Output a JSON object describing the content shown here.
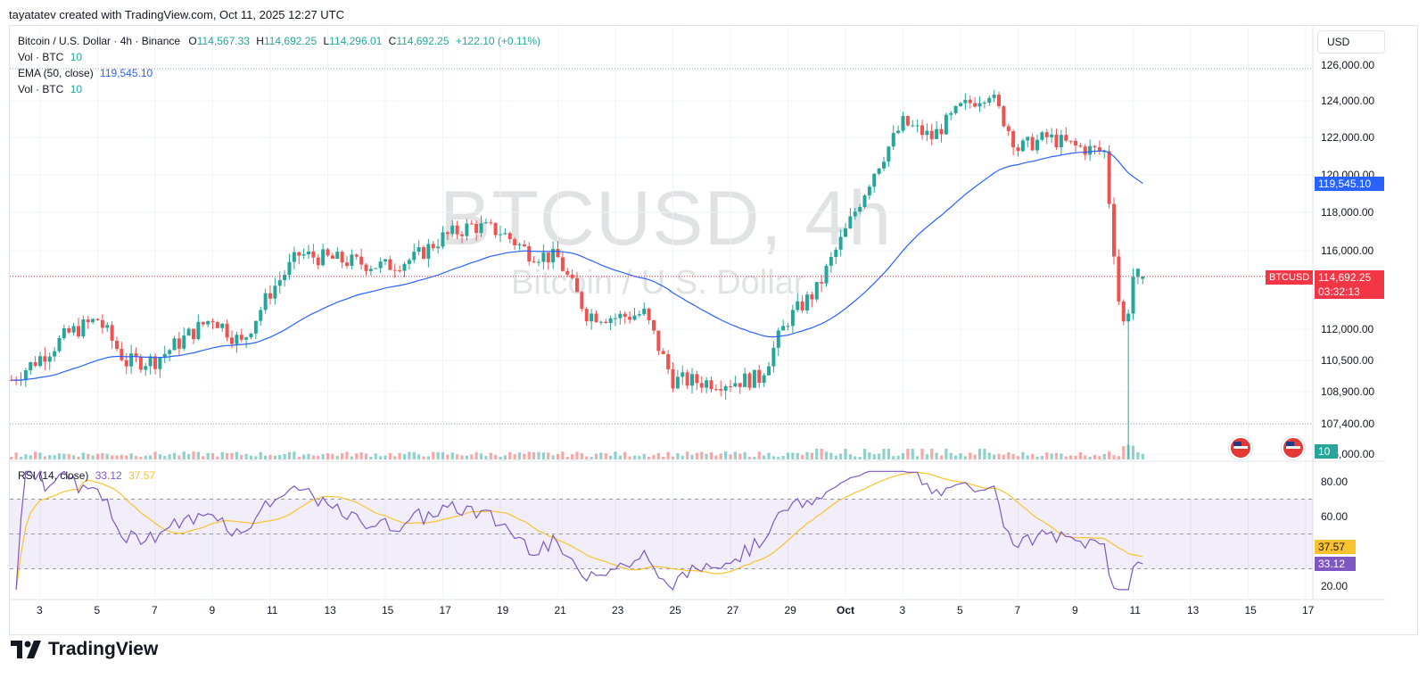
{
  "header": {
    "text": "tayatatev created with TradingView.com, Oct 11, 2025 12:27 UTC"
  },
  "legend": {
    "symbol": "Bitcoin / U.S. Dollar · 4h · Binance",
    "o_label": "O",
    "o": "114,567.33",
    "h_label": "H",
    "h": "114,692.25",
    "l_label": "L",
    "l": "114,296.01",
    "c_label": "C",
    "c": "114,692.25",
    "change": "+122.10 (+0.11%)",
    "vol1_label": "Vol · BTC",
    "vol1": "10",
    "ema_label": "EMA (50, close)",
    "ema": "119,545.10",
    "vol2_label": "Vol · BTC",
    "vol2": "10",
    "rsi_label": "RSI (14, close)",
    "rsi": "33.12",
    "rsi_ma": "37.57"
  },
  "currency_button": "USD",
  "watermark": {
    "symbol": "BTCUSD, 4h",
    "name": "Bitcoin / U.S. Dollar"
  },
  "tags": {
    "ema": "119,545.10",
    "symbol": "BTCUSD",
    "price": "114,692.25",
    "countdown": "03:32:13",
    "volume": "10",
    "rsi_ma": "37.57",
    "rsi": "33.12"
  },
  "brand": "TradingView",
  "colors": {
    "up": "#26a69a",
    "down": "#ef5350",
    "ema": "#2962ff",
    "rsi": "#7e57c2",
    "rsi_ma": "#f9c22e"
  },
  "chart_data": {
    "type": "candlestick",
    "price_axis_ticks": [
      "126,000.00",
      "124,000.00",
      "122,000.00",
      "120,000.00",
      "118,000.00",
      "116,000.00",
      "112,000.00",
      "110,500.00",
      "108,900.00",
      "107,400.00",
      "106,000.00"
    ],
    "price_ticks_numeric": [
      126000,
      124000,
      122000,
      120000,
      118000,
      116000,
      112000,
      110500,
      108900,
      107400,
      106000
    ],
    "rsi_axis_ticks": [
      "80.00",
      "60.00",
      "20.00"
    ],
    "rsi_bands": [
      70,
      50,
      30
    ],
    "x_axis_labels": [
      "3",
      "5",
      "7",
      "9",
      "11",
      "13",
      "15",
      "17",
      "19",
      "21",
      "23",
      "25",
      "27",
      "29",
      "Oct",
      "3",
      "5",
      "7",
      "9",
      "11",
      "13",
      "15",
      "17"
    ],
    "key_price_path": [
      {
        "date": "Sep 2",
        "price": 109500
      },
      {
        "date": "Sep 4",
        "price": 111800
      },
      {
        "date": "Sep 5",
        "price": 112500
      },
      {
        "date": "Sep 6",
        "price": 110400
      },
      {
        "date": "Sep 7",
        "price": 110500
      },
      {
        "date": "Sep 9",
        "price": 112600
      },
      {
        "date": "Sep 10",
        "price": 111300
      },
      {
        "date": "Sep 11",
        "price": 113900
      },
      {
        "date": "Sep 12",
        "price": 115800
      },
      {
        "date": "Sep 13",
        "price": 115600
      },
      {
        "date": "Sep 15",
        "price": 115200
      },
      {
        "date": "Sep 16",
        "price": 115600
      },
      {
        "date": "Sep 17",
        "price": 116700
      },
      {
        "date": "Sep 18",
        "price": 117300
      },
      {
        "date": "Sep 19",
        "price": 117000
      },
      {
        "date": "Sep 20",
        "price": 115900
      },
      {
        "date": "Sep 21",
        "price": 115600
      },
      {
        "date": "Sep 22",
        "price": 112800
      },
      {
        "date": "Sep 23",
        "price": 112600
      },
      {
        "date": "Sep 24",
        "price": 112800
      },
      {
        "date": "Sep 25",
        "price": 109500
      },
      {
        "date": "Sep 26",
        "price": 109400
      },
      {
        "date": "Sep 27",
        "price": 109400
      },
      {
        "date": "Sep 28",
        "price": 109600
      },
      {
        "date": "Sep 29",
        "price": 112500
      },
      {
        "date": "Sep 30",
        "price": 114000
      },
      {
        "date": "Oct 1",
        "price": 117000
      },
      {
        "date": "Oct 2",
        "price": 120200
      },
      {
        "date": "Oct 3",
        "price": 122800
      },
      {
        "date": "Oct 4",
        "price": 122000
      },
      {
        "date": "Oct 5",
        "price": 123600
      },
      {
        "date": "Oct 6",
        "price": 124500
      },
      {
        "date": "Oct 7",
        "price": 121400
      },
      {
        "date": "Oct 8",
        "price": 122000
      },
      {
        "date": "Oct 9",
        "price": 121500
      },
      {
        "date": "Oct 10",
        "price": 121200
      },
      {
        "date": "Oct 10.5",
        "price": 113500
      },
      {
        "date": "Oct 11",
        "price": 114692
      }
    ],
    "last": {
      "open": 114567.33,
      "high": 114692.25,
      "low": 114296.01,
      "close": 114692.25
    },
    "ema_last": 119545.1,
    "rsi_last": 33.12,
    "rsi_ma_last": 37.57
  }
}
